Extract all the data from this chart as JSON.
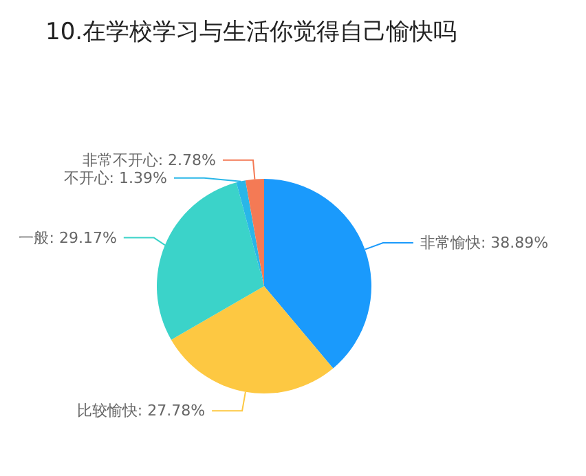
{
  "chart_data": {
    "type": "pie",
    "title": "10.在学校学习与生活你觉得自己愉快吗",
    "categories": [
      "非常愉快",
      "比较愉快",
      "一般",
      "不开心",
      "非常不开心"
    ],
    "values": [
      38.89,
      27.78,
      29.17,
      1.39,
      2.78
    ],
    "value_labels": [
      "38.89%",
      "27.78%",
      "29.17%",
      "1.39%",
      "2.78%"
    ],
    "colors": [
      "#1a9afc",
      "#fdc842",
      "#3bd3c9",
      "#29b6e8",
      "#f47a55"
    ],
    "legend": false
  }
}
